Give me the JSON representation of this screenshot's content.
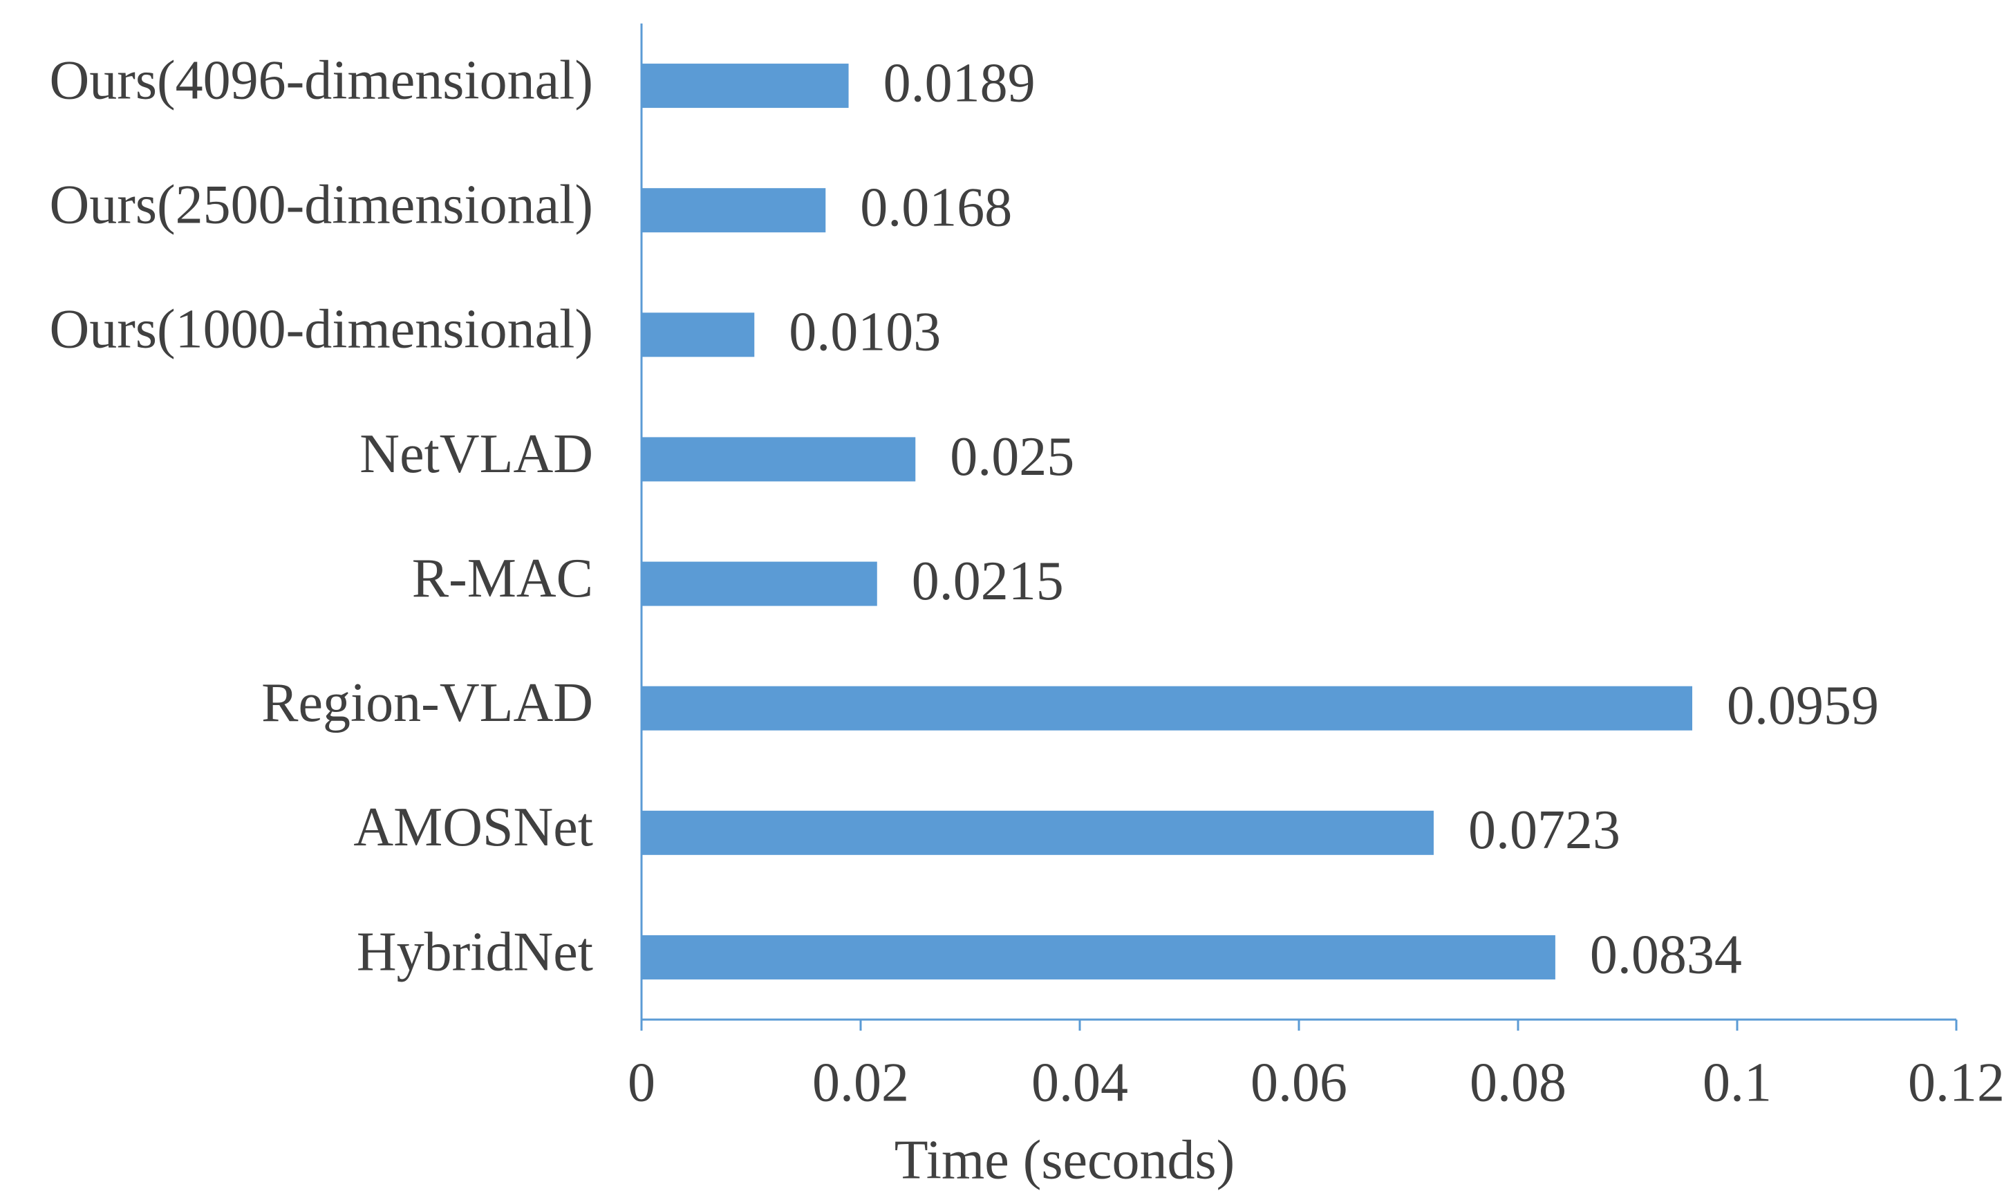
{
  "chart_data": {
    "type": "bar",
    "orientation": "horizontal",
    "x_label": "Time (seconds)",
    "categories": [
      "Ours(4096-dimensional)",
      "Ours(2500-dimensional)",
      "Ours(1000-dimensional)",
      "NetVLAD",
      "R-MAC",
      "Region-VLAD",
      "AMOSNet",
      "HybridNet"
    ],
    "values": [
      0.0189,
      0.0168,
      0.0103,
      0.025,
      0.0215,
      0.0959,
      0.0723,
      0.0834
    ],
    "color": "#5b9bd5",
    "xlim": [
      0,
      0.12
    ],
    "xticks": [
      0,
      0.02,
      0.04,
      0.06,
      0.08,
      0.1,
      0.12
    ]
  }
}
